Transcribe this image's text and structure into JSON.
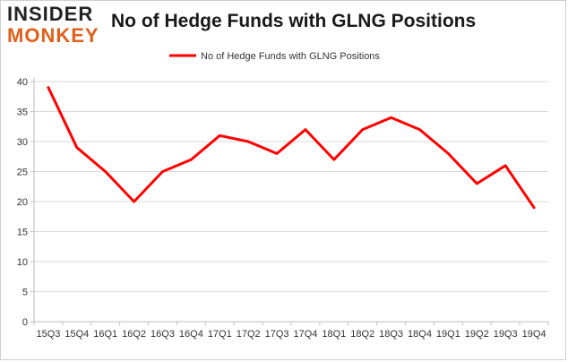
{
  "logo": {
    "line1": "INSIDER",
    "line2": "MONKEY"
  },
  "colors": {
    "series": "#ff0000",
    "grid": "#d9d9d9",
    "axis": "#bfbfbf",
    "logo_accent": "#e0601a"
  },
  "chart_data": {
    "type": "line",
    "title": "No of Hedge Funds with GLNG Positions",
    "xlabel": "",
    "ylabel": "",
    "ylim": [
      0,
      40
    ],
    "yticks": [
      0,
      5,
      10,
      15,
      20,
      25,
      30,
      35,
      40
    ],
    "grid": true,
    "legend_position": "top-center",
    "categories": [
      "15Q3",
      "15Q4",
      "16Q1",
      "16Q2",
      "16Q3",
      "16Q4",
      "17Q1",
      "17Q2",
      "17Q3",
      "17Q4",
      "18Q1",
      "18Q2",
      "18Q3",
      "18Q4",
      "19Q1",
      "19Q2",
      "19Q3",
      "19Q4"
    ],
    "series": [
      {
        "name": "No of Hedge Funds with GLNG Positions",
        "values": [
          39,
          29,
          25,
          20,
          25,
          27,
          31,
          30,
          28,
          32,
          27,
          32,
          34,
          32,
          28,
          23,
          26,
          19
        ]
      }
    ]
  }
}
